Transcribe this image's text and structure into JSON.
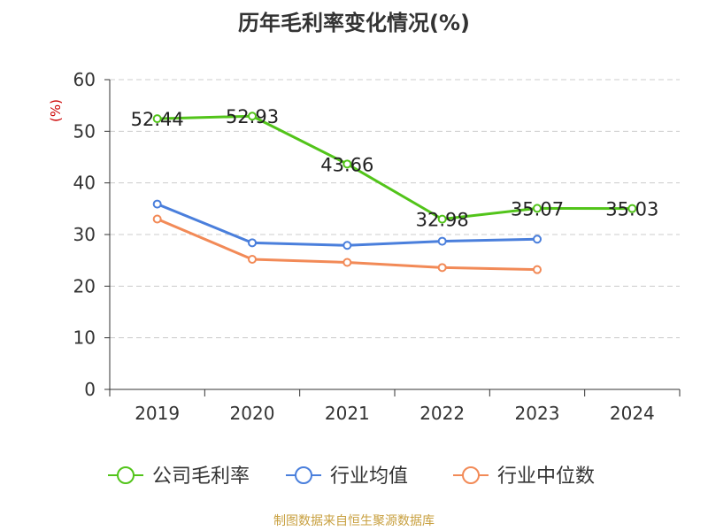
{
  "chart_data": {
    "type": "line",
    "title": "历年毛利率变化情况(%)",
    "ylabel": "(%)",
    "xlabel": "",
    "categories": [
      "2019",
      "2020",
      "2021",
      "2022",
      "2023",
      "2024"
    ],
    "ylim": [
      0,
      60
    ],
    "yticks": [
      0,
      10,
      20,
      30,
      40,
      50,
      60
    ],
    "grid": true,
    "legend_position": "bottom",
    "series": [
      {
        "name": "公司毛利率",
        "color": "#52c41a",
        "values": [
          52.44,
          52.93,
          43.66,
          32.98,
          35.07,
          35.03
        ],
        "labels": [
          "52.44",
          "52.93",
          "43.66",
          "32.98",
          "35.07",
          "35.03"
        ]
      },
      {
        "name": "行业均值",
        "color": "#4a7fdc",
        "values": [
          35.9,
          28.4,
          27.9,
          28.7,
          29.1,
          null
        ]
      },
      {
        "name": "行业中位数",
        "color": "#f28a57",
        "values": [
          33.0,
          25.2,
          24.6,
          23.6,
          23.2,
          null
        ]
      }
    ]
  },
  "source": "制图数据来自恒生聚源数据库",
  "colors": {
    "ylabel": "#cc0000",
    "axis": "#333333",
    "grid": "#cccccc",
    "source": "#c8a040"
  }
}
